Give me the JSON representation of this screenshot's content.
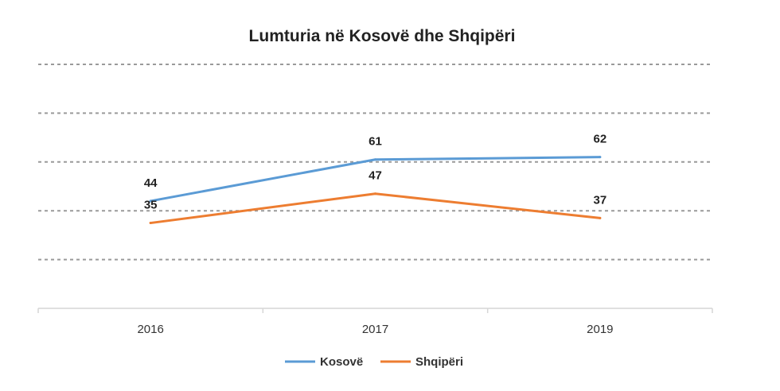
{
  "chart_data": {
    "type": "line",
    "title": "Lumturia në Kosovë dhe Shqipëri",
    "categories": [
      "2016",
      "2017",
      "2019"
    ],
    "series": [
      {
        "name": "Kosovë",
        "values": [
          44,
          61,
          62
        ],
        "color": "#5b9bd5"
      },
      {
        "name": "Shqipëri",
        "values": [
          35,
          47,
          37
        ],
        "color": "#ed7d31"
      }
    ],
    "ylim": [
      0,
      100
    ],
    "grid": true,
    "legend": "bottom",
    "xlabel": "",
    "ylabel": ""
  }
}
